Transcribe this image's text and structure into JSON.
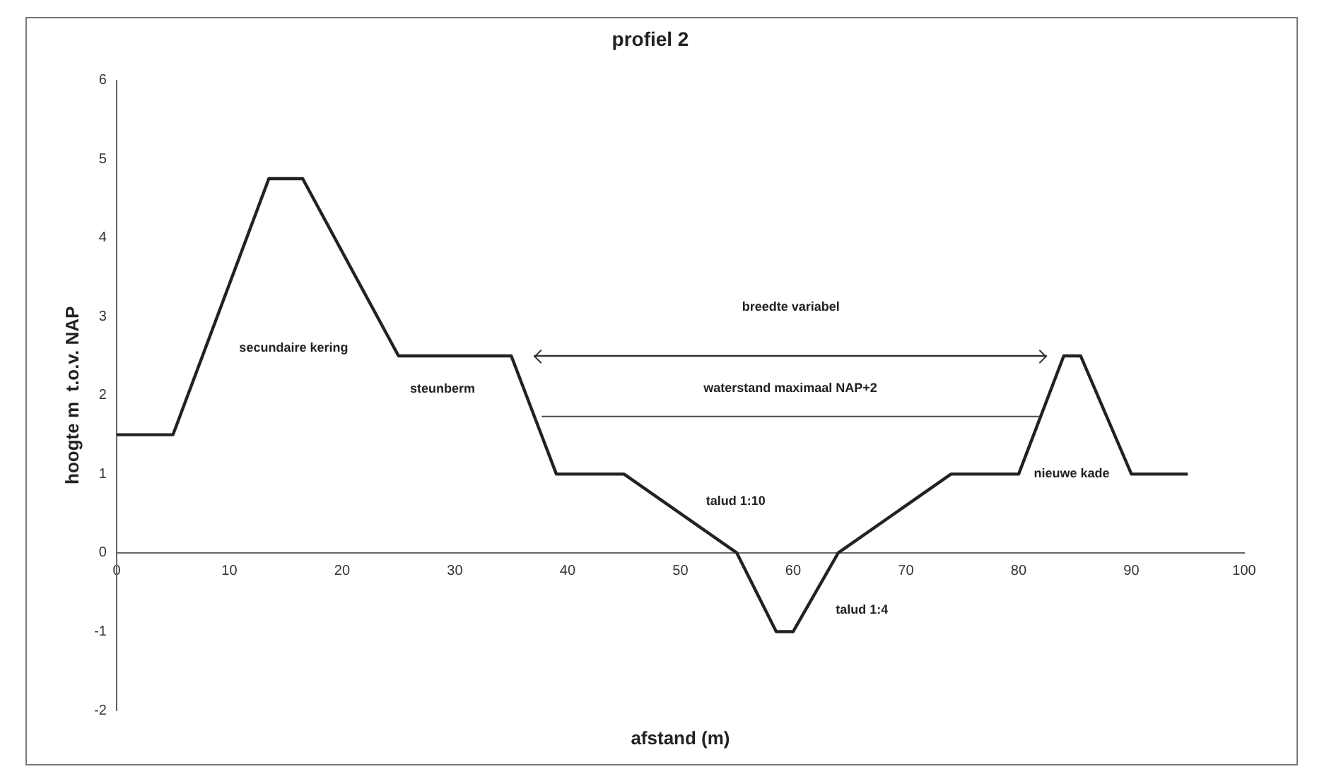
{
  "chart_data": {
    "type": "line",
    "title": "profiel 2",
    "xlabel": "afstand (m)",
    "ylabel": "hoogte m  t.o.v. NAP",
    "series": [
      {
        "color": "#222222",
        "x": [
          0,
          5,
          13.5,
          16.5,
          25,
          35,
          39,
          45,
          55,
          58.5,
          60,
          64,
          74,
          80,
          84,
          85.5,
          90,
          95
        ],
        "values": [
          1.5,
          1.5,
          4.75,
          4.75,
          2.5,
          2.5,
          1,
          1,
          0,
          -1,
          -1,
          0,
          1,
          1,
          2.5,
          2.5,
          1,
          1
        ]
      },
      {
        "name": "waterstand maximaal NAP+2",
        "color": "#555555",
        "x": [
          37.7,
          81.8
        ],
        "values": [
          1.73,
          1.73
        ]
      },
      {
        "color": "#333333",
        "x": [
          37,
          82.5
        ],
        "values": [
          2.5,
          2.5
        ]
      }
    ],
    "annotations": [
      "secundaire kering",
      "steunberm",
      "breedte variabel",
      "talud 1:10",
      "talud 1:4",
      "nieuwe kade"
    ],
    "xlim": [
      0,
      100
    ],
    "xticks": [
      0,
      10,
      20,
      30,
      40,
      50,
      60,
      70,
      80,
      90,
      100
    ],
    "ylim": [
      -2,
      6
    ],
    "yticks": [
      -2,
      -1,
      0,
      1,
      2,
      3,
      4,
      5,
      6
    ],
    "grid": false,
    "legend": false,
    "marker": "none",
    "line_style": "solid"
  }
}
